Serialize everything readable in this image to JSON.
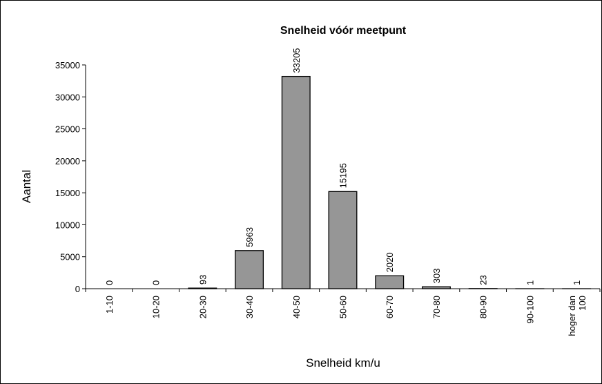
{
  "chart_data": {
    "type": "bar",
    "title": "Snelheid vóór meetpunt",
    "x_label": "Snelheid km/u",
    "y_label": "Aantal",
    "categories": [
      "1-10",
      "10-20",
      "20-30",
      "30-40",
      "40-50",
      "50-60",
      "60-70",
      "70-80",
      "80-90",
      "90-100",
      "hoger dan 100"
    ],
    "values": [
      0,
      0,
      93,
      5963,
      33205,
      15195,
      2020,
      303,
      23,
      1,
      1
    ],
    "color": "#969696",
    "ylim": [
      0,
      35000
    ],
    "yticks": [
      0,
      5000,
      10000,
      15000,
      20000,
      25000,
      30000,
      35000
    ],
    "grid": false
  }
}
